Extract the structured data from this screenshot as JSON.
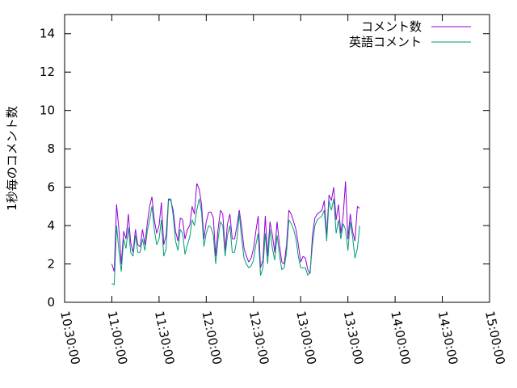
{
  "chart_data": {
    "type": "line",
    "title": "",
    "xlabel": "",
    "ylabel": "1秒毎のコメント数",
    "xlim": [
      "10:30:00",
      "15:00:00"
    ],
    "ylim": [
      0,
      15
    ],
    "x_ticks": [
      "10:30:00",
      "11:00:00",
      "11:30:00",
      "12:00:00",
      "12:30:00",
      "13:00:00",
      "13:30:00",
      "14:00:00",
      "14:30:00",
      "15:00:00"
    ],
    "y_ticks": [
      0,
      2,
      4,
      6,
      8,
      10,
      12,
      14
    ],
    "grid": false,
    "legend_position": "top-right",
    "series": [
      {
        "name": "コメント数",
        "color": "#9400d3",
        "points": [
          [
            "11:00:00",
            2.0
          ],
          [
            "11:01:30",
            1.6
          ],
          [
            "11:03:00",
            5.1
          ],
          [
            "11:04:30",
            3.8
          ],
          [
            "11:06:00",
            2.0
          ],
          [
            "11:07:30",
            3.7
          ],
          [
            "11:09:00",
            3.3
          ],
          [
            "11:10:30",
            4.6
          ],
          [
            "11:12:00",
            3.1
          ],
          [
            "11:13:30",
            2.6
          ],
          [
            "11:15:00",
            3.8
          ],
          [
            "11:16:30",
            3.0
          ],
          [
            "11:18:00",
            2.9
          ],
          [
            "11:19:30",
            3.8
          ],
          [
            "11:21:00",
            3.0
          ],
          [
            "11:22:30",
            4.1
          ],
          [
            "11:24:00",
            5.0
          ],
          [
            "11:25:30",
            5.5
          ],
          [
            "11:27:00",
            4.3
          ],
          [
            "11:28:30",
            3.6
          ],
          [
            "11:30:00",
            4.0
          ],
          [
            "11:31:30",
            5.2
          ],
          [
            "11:33:00",
            3.0
          ],
          [
            "11:34:30",
            3.5
          ],
          [
            "11:36:00",
            5.4
          ],
          [
            "11:37:30",
            5.3
          ],
          [
            "11:39:00",
            4.8
          ],
          [
            "11:40:30",
            3.7
          ],
          [
            "11:42:00",
            3.2
          ],
          [
            "11:43:30",
            4.4
          ],
          [
            "11:45:00",
            4.3
          ],
          [
            "11:46:30",
            3.3
          ],
          [
            "11:48:00",
            3.8
          ],
          [
            "11:49:30",
            4.0
          ],
          [
            "11:51:00",
            5.0
          ],
          [
            "11:52:30",
            4.6
          ],
          [
            "11:54:00",
            6.2
          ],
          [
            "11:55:30",
            5.9
          ],
          [
            "11:57:00",
            5.1
          ],
          [
            "11:58:30",
            3.3
          ],
          [
            "12:00:00",
            4.2
          ],
          [
            "12:01:30",
            4.7
          ],
          [
            "12:03:00",
            4.7
          ],
          [
            "12:04:30",
            4.4
          ],
          [
            "12:06:00",
            2.4
          ],
          [
            "12:07:30",
            3.8
          ],
          [
            "12:09:00",
            4.8
          ],
          [
            "12:10:30",
            4.6
          ],
          [
            "12:12:00",
            2.7
          ],
          [
            "12:13:30",
            4.1
          ],
          [
            "12:15:00",
            4.6
          ],
          [
            "12:16:30",
            3.3
          ],
          [
            "12:18:00",
            3.3
          ],
          [
            "12:19:30",
            4.0
          ],
          [
            "12:21:00",
            4.8
          ],
          [
            "12:22:30",
            3.9
          ],
          [
            "12:24:00",
            2.8
          ],
          [
            "12:25:30",
            2.4
          ],
          [
            "12:27:00",
            2.1
          ],
          [
            "12:28:30",
            2.3
          ],
          [
            "12:30:00",
            2.8
          ],
          [
            "12:31:30",
            3.7
          ],
          [
            "12:33:00",
            4.5
          ],
          [
            "12:34:30",
            1.8
          ],
          [
            "12:36:00",
            2.2
          ],
          [
            "12:37:30",
            4.5
          ],
          [
            "12:39:00",
            2.4
          ],
          [
            "12:40:30",
            4.2
          ],
          [
            "12:42:00",
            3.5
          ],
          [
            "12:43:30",
            2.6
          ],
          [
            "12:45:00",
            4.2
          ],
          [
            "12:46:30",
            3.0
          ],
          [
            "12:48:00",
            2.1
          ],
          [
            "12:49:30",
            2.0
          ],
          [
            "12:51:00",
            3.0
          ],
          [
            "12:52:30",
            4.8
          ],
          [
            "12:54:00",
            4.6
          ],
          [
            "12:55:30",
            4.2
          ],
          [
            "12:57:00",
            3.8
          ],
          [
            "12:58:30",
            3.0
          ],
          [
            "13:00:00",
            2.1
          ],
          [
            "13:01:30",
            2.4
          ],
          [
            "13:03:00",
            2.3
          ],
          [
            "13:04:30",
            1.7
          ],
          [
            "13:06:00",
            1.5
          ],
          [
            "13:07:30",
            3.5
          ],
          [
            "13:09:00",
            4.4
          ],
          [
            "13:10:30",
            4.6
          ],
          [
            "13:12:00",
            4.7
          ],
          [
            "13:13:30",
            4.8
          ],
          [
            "13:15:00",
            5.3
          ],
          [
            "13:16:30",
            3.5
          ],
          [
            "13:18:00",
            5.6
          ],
          [
            "13:19:30",
            5.3
          ],
          [
            "13:21:00",
            6.0
          ],
          [
            "13:22:30",
            4.3
          ],
          [
            "13:24:00",
            5.1
          ],
          [
            "13:25:30",
            3.6
          ],
          [
            "13:27:00",
            4.5
          ],
          [
            "13:28:30",
            6.3
          ],
          [
            "13:30:00",
            3.3
          ],
          [
            "13:31:30",
            4.6
          ],
          [
            "13:33:00",
            3.7
          ],
          [
            "13:34:30",
            3.2
          ],
          [
            "13:36:00",
            5.0
          ],
          [
            "13:37:30",
            4.9
          ]
        ]
      },
      {
        "name": "英語コメント",
        "color": "#009e73",
        "points": [
          [
            "11:00:00",
            1.0
          ],
          [
            "11:01:30",
            0.9
          ],
          [
            "11:03:00",
            4.0
          ],
          [
            "11:04:30",
            2.7
          ],
          [
            "11:06:00",
            1.6
          ],
          [
            "11:07:30",
            3.3
          ],
          [
            "11:09:00",
            2.8
          ],
          [
            "11:10:30",
            3.9
          ],
          [
            "11:12:00",
            2.6
          ],
          [
            "11:13:30",
            2.4
          ],
          [
            "11:15:00",
            3.5
          ],
          [
            "11:16:30",
            2.6
          ],
          [
            "11:18:00",
            2.6
          ],
          [
            "11:19:30",
            3.3
          ],
          [
            "11:21:00",
            2.7
          ],
          [
            "11:22:30",
            3.7
          ],
          [
            "11:24:00",
            4.3
          ],
          [
            "11:25:30",
            5.0
          ],
          [
            "11:27:00",
            3.8
          ],
          [
            "11:28:30",
            3.0
          ],
          [
            "11:30:00",
            3.3
          ],
          [
            "11:31:30",
            4.3
          ],
          [
            "11:33:00",
            2.4
          ],
          [
            "11:34:30",
            2.8
          ],
          [
            "11:36:00",
            5.3
          ],
          [
            "11:37:30",
            5.4
          ],
          [
            "11:39:00",
            4.5
          ],
          [
            "11:40:30",
            3.2
          ],
          [
            "11:42:00",
            2.7
          ],
          [
            "11:43:30",
            3.8
          ],
          [
            "11:45:00",
            3.6
          ],
          [
            "11:46:30",
            2.5
          ],
          [
            "11:48:00",
            3.0
          ],
          [
            "11:49:30",
            3.4
          ],
          [
            "11:51:00",
            4.3
          ],
          [
            "11:52:30",
            4.0
          ],
          [
            "11:54:00",
            4.8
          ],
          [
            "11:55:30",
            5.4
          ],
          [
            "11:57:00",
            4.7
          ],
          [
            "11:58:30",
            2.9
          ],
          [
            "12:00:00",
            3.6
          ],
          [
            "12:01:30",
            4.0
          ],
          [
            "12:03:00",
            3.9
          ],
          [
            "12:04:30",
            3.5
          ],
          [
            "12:06:00",
            2.0
          ],
          [
            "12:07:30",
            3.3
          ],
          [
            "12:09:00",
            4.2
          ],
          [
            "12:10:30",
            4.0
          ],
          [
            "12:12:00",
            2.4
          ],
          [
            "12:13:30",
            3.5
          ],
          [
            "12:15:00",
            4.0
          ],
          [
            "12:16:30",
            2.6
          ],
          [
            "12:18:00",
            2.6
          ],
          [
            "12:19:30",
            3.3
          ],
          [
            "12:21:00",
            4.6
          ],
          [
            "12:22:30",
            3.3
          ],
          [
            "12:24:00",
            2.3
          ],
          [
            "12:25:30",
            2.0
          ],
          [
            "12:27:00",
            1.8
          ],
          [
            "12:28:30",
            1.9
          ],
          [
            "12:30:00",
            2.2
          ],
          [
            "12:31:30",
            3.0
          ],
          [
            "12:33:00",
            3.6
          ],
          [
            "12:34:30",
            1.4
          ],
          [
            "12:36:00",
            1.8
          ],
          [
            "12:37:30",
            3.6
          ],
          [
            "12:39:00",
            2.0
          ],
          [
            "12:40:30",
            3.8
          ],
          [
            "12:42:00",
            2.8
          ],
          [
            "12:43:30",
            2.2
          ],
          [
            "12:45:00",
            3.5
          ],
          [
            "12:46:30",
            2.5
          ],
          [
            "12:48:00",
            1.7
          ],
          [
            "12:49:30",
            1.8
          ],
          [
            "12:51:00",
            2.6
          ],
          [
            "12:52:30",
            4.3
          ],
          [
            "12:54:00",
            4.1
          ],
          [
            "12:55:30",
            3.8
          ],
          [
            "12:57:00",
            3.3
          ],
          [
            "12:58:30",
            2.4
          ],
          [
            "13:00:00",
            1.8
          ],
          [
            "13:01:30",
            1.8
          ],
          [
            "13:03:00",
            1.8
          ],
          [
            "13:04:30",
            1.4
          ],
          [
            "13:06:00",
            1.6
          ],
          [
            "13:07:30",
            3.0
          ],
          [
            "13:09:00",
            4.0
          ],
          [
            "13:10:30",
            4.3
          ],
          [
            "13:12:00",
            4.4
          ],
          [
            "13:13:30",
            4.5
          ],
          [
            "13:15:00",
            4.8
          ],
          [
            "13:16:30",
            3.2
          ],
          [
            "13:18:00",
            5.3
          ],
          [
            "13:19:30",
            4.8
          ],
          [
            "13:21:00",
            5.4
          ],
          [
            "13:22:30",
            3.6
          ],
          [
            "13:24:00",
            4.3
          ],
          [
            "13:25:30",
            3.3
          ],
          [
            "13:27:00",
            4.1
          ],
          [
            "13:28:30",
            3.8
          ],
          [
            "13:30:00",
            2.7
          ],
          [
            "13:31:30",
            4.2
          ],
          [
            "13:33:00",
            3.4
          ],
          [
            "13:34:30",
            2.3
          ],
          [
            "13:36:00",
            2.8
          ],
          [
            "13:37:30",
            4.0
          ]
        ]
      }
    ]
  }
}
